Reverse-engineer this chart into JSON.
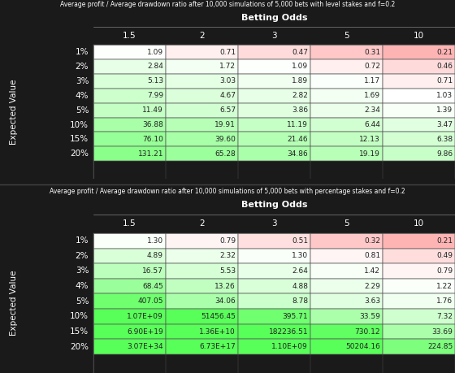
{
  "title1": "Average profit / Average drawdown ratio after 10,000 simulations of 5,000 bets with level stakes and f=0.2",
  "title2": "Average profit / Average drawdown ratio after 10,000 simulations of 5,000 bets with percentage stakes and f=0.2",
  "col_header": "Betting Odds",
  "row_header": "Expected Value",
  "cols": [
    "1.5",
    "2",
    "3",
    "5",
    "10"
  ],
  "rows": [
    "1%",
    "2%",
    "3%",
    "4%",
    "5%",
    "10%",
    "15%",
    "20%"
  ],
  "table1": [
    [
      1.09,
      0.71,
      0.47,
      0.31,
      0.21
    ],
    [
      2.84,
      1.72,
      1.09,
      0.72,
      0.46
    ],
    [
      5.13,
      3.03,
      1.89,
      1.17,
      0.71
    ],
    [
      7.99,
      4.67,
      2.82,
      1.69,
      1.03
    ],
    [
      11.49,
      6.57,
      3.86,
      2.34,
      1.39
    ],
    [
      36.88,
      19.91,
      11.19,
      6.44,
      3.47
    ],
    [
      76.1,
      39.6,
      21.46,
      12.13,
      6.38
    ],
    [
      131.21,
      65.28,
      34.86,
      19.19,
      9.86
    ]
  ],
  "table1_text": [
    [
      "1.09",
      "0.71",
      "0.47",
      "0.31",
      "0.21"
    ],
    [
      "2.84",
      "1.72",
      "1.09",
      "0.72",
      "0.46"
    ],
    [
      "5.13",
      "3.03",
      "1.89",
      "1.17",
      "0.71"
    ],
    [
      "7.99",
      "4.67",
      "2.82",
      "1.69",
      "1.03"
    ],
    [
      "11.49",
      "6.57",
      "3.86",
      "2.34",
      "1.39"
    ],
    [
      "36.88",
      "19.91",
      "11.19",
      "6.44",
      "3.47"
    ],
    [
      "76.10",
      "39.60",
      "21.46",
      "12.13",
      "6.38"
    ],
    [
      "131.21",
      "65.28",
      "34.86",
      "19.19",
      "9.86"
    ]
  ],
  "table2": [
    [
      1.3,
      0.79,
      0.51,
      0.32,
      0.21
    ],
    [
      4.89,
      2.32,
      1.3,
      0.81,
      0.49
    ],
    [
      16.57,
      5.53,
      2.64,
      1.42,
      0.79
    ],
    [
      68.45,
      13.26,
      4.88,
      2.29,
      1.22
    ],
    [
      407.05,
      34.06,
      8.78,
      3.63,
      1.76
    ],
    [
      1070000000.0,
      51456.45,
      395.71,
      33.59,
      7.32
    ],
    [
      6.9e+19,
      13600000000.0,
      182236.51,
      730.12,
      33.69
    ],
    [
      3.07e+34,
      6.73e+17,
      1100000000.0,
      50204.16,
      224.85
    ]
  ],
  "table2_text": [
    [
      "1.30",
      "0.79",
      "0.51",
      "0.32",
      "0.21"
    ],
    [
      "4.89",
      "2.32",
      "1.30",
      "0.81",
      "0.49"
    ],
    [
      "16.57",
      "5.53",
      "2.64",
      "1.42",
      "0.79"
    ],
    [
      "68.45",
      "13.26",
      "4.88",
      "2.29",
      "1.22"
    ],
    [
      "407.05",
      "34.06",
      "8.78",
      "3.63",
      "1.76"
    ],
    [
      "1.07E+09",
      "51456.45",
      "395.71",
      "33.59",
      "7.32"
    ],
    [
      "6.90E+19",
      "1.36E+10",
      "182236.51",
      "730.12",
      "33.69"
    ],
    [
      "3.07E+34",
      "6.73E+17",
      "1.10E+09",
      "50204.16",
      "224.85"
    ]
  ],
  "bg_color": "#1a1a1a",
  "text_color_dark": "#ffffff",
  "text_color_light": "#000000",
  "header_bg": "#2d2d2d",
  "cell_text_color_normal": "#000000",
  "cell_text_color_light": "#cccccc"
}
